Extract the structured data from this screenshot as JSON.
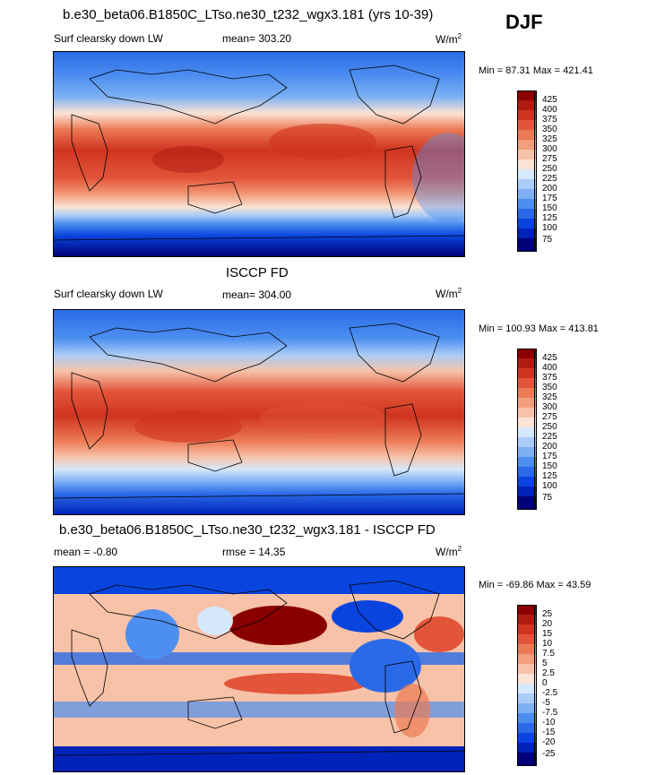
{
  "season": "DJF",
  "palette_levels": [
    "#00007a",
    "#0022b8",
    "#0a44de",
    "#2a6ae8",
    "#4d8ff0",
    "#7db0f4",
    "#a9cdf7",
    "#d6e8fb",
    "#fbe3d6",
    "#f7c2a8",
    "#f29e7c",
    "#ec7a54",
    "#e2553a",
    "#cf3420",
    "#b01a0f",
    "#8a0000"
  ],
  "panels": [
    {
      "title": "b.e30_beta06.B1850C_LTso.ne30_t232_wgx3.181 (yrs 10-39)",
      "left_label": "Surf clearsky down LW",
      "center_label": "mean= 303.20",
      "units": "W/m",
      "units_sup": "2",
      "minmax": "Min =  87.31 Max = 421.41",
      "colorbar_labels": [
        "425",
        "400",
        "375",
        "350",
        "325",
        "300",
        "275",
        "250",
        "225",
        "200",
        "175",
        "150",
        "125",
        "100",
        "75"
      ]
    },
    {
      "title": "ISCCP FD",
      "left_label": "Surf clearsky down LW",
      "center_label": "mean= 304.00",
      "units": "W/m",
      "units_sup": "2",
      "minmax": "Min = 100.93 Max = 413.81",
      "colorbar_labels": [
        "425",
        "400",
        "375",
        "350",
        "325",
        "300",
        "275",
        "250",
        "225",
        "200",
        "175",
        "150",
        "125",
        "100",
        "75"
      ]
    },
    {
      "title": "b.e30_beta06.B1850C_LTso.ne30_t232_wgx3.181 - ISCCP FD",
      "left_label": "mean =  -0.80",
      "center_label": "rmse =  14.35",
      "units": "W/m",
      "units_sup": "2",
      "minmax": "Min = -69.86 Max =  43.59",
      "colorbar_labels": [
        "25",
        "20",
        "15",
        "10",
        "7.5",
        "5",
        "2.5",
        "0",
        "-2.5",
        "-5",
        "-7.5",
        "-10",
        "-15",
        "-20",
        "-25"
      ]
    }
  ]
}
